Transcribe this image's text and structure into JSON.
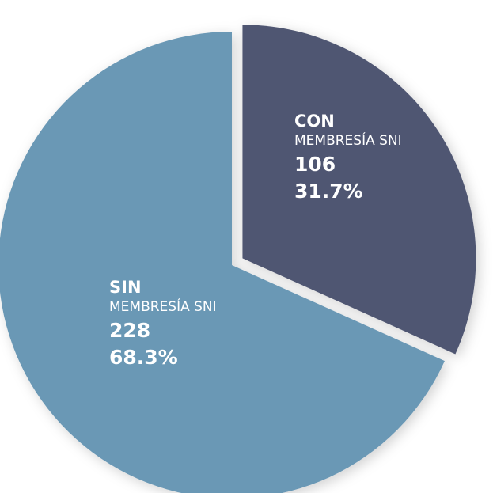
{
  "chart_data": {
    "type": "pie",
    "categories": [
      "CON",
      "SIN"
    ],
    "category_subtitles": [
      "MEMBRESÍA SNI",
      "MEMBRESÍA SNI"
    ],
    "values": [
      106,
      228
    ],
    "percentages": [
      31.7,
      68.3
    ],
    "percentage_labels": [
      "31.7%",
      "68.3%"
    ],
    "colors": [
      "#4f5672",
      "#6a98b5"
    ],
    "exploded": [
      true,
      false
    ]
  }
}
